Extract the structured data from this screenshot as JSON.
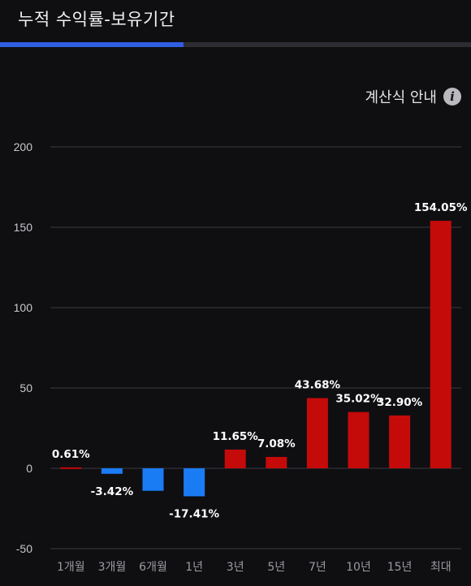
{
  "header": {
    "title": "누적 수익률-보유기간",
    "tab_progress": 0.39
  },
  "calc_link": {
    "label": "계산식 안내",
    "icon": "info-icon",
    "icon_glyph": "i"
  },
  "colors": {
    "positive": "#c50a0a",
    "negative": "#1a7cf5",
    "background": "#0f0f12",
    "grid": "#3a3a40",
    "tab_active": "#2f5fe3"
  },
  "chart_data": {
    "type": "bar",
    "categories": [
      "1개월",
      "3개월",
      "6개월",
      "1년",
      "3년",
      "5년",
      "7년",
      "10년",
      "15년",
      "최대"
    ],
    "values": [
      0.61,
      -3.42,
      -14.0,
      -17.41,
      11.65,
      7.08,
      43.68,
      35.02,
      32.9,
      154.05
    ],
    "data_labels": [
      "0.61%",
      "-3.42%",
      "",
      "-17.41%",
      "11.65%",
      "7.08%",
      "43.68%",
      "35.02%",
      "32.90%",
      "154.05%"
    ],
    "y_ticks": [
      200,
      150,
      100,
      50,
      0,
      -50
    ],
    "ylim": [
      -50,
      200
    ],
    "grid": true,
    "legend": "none"
  }
}
